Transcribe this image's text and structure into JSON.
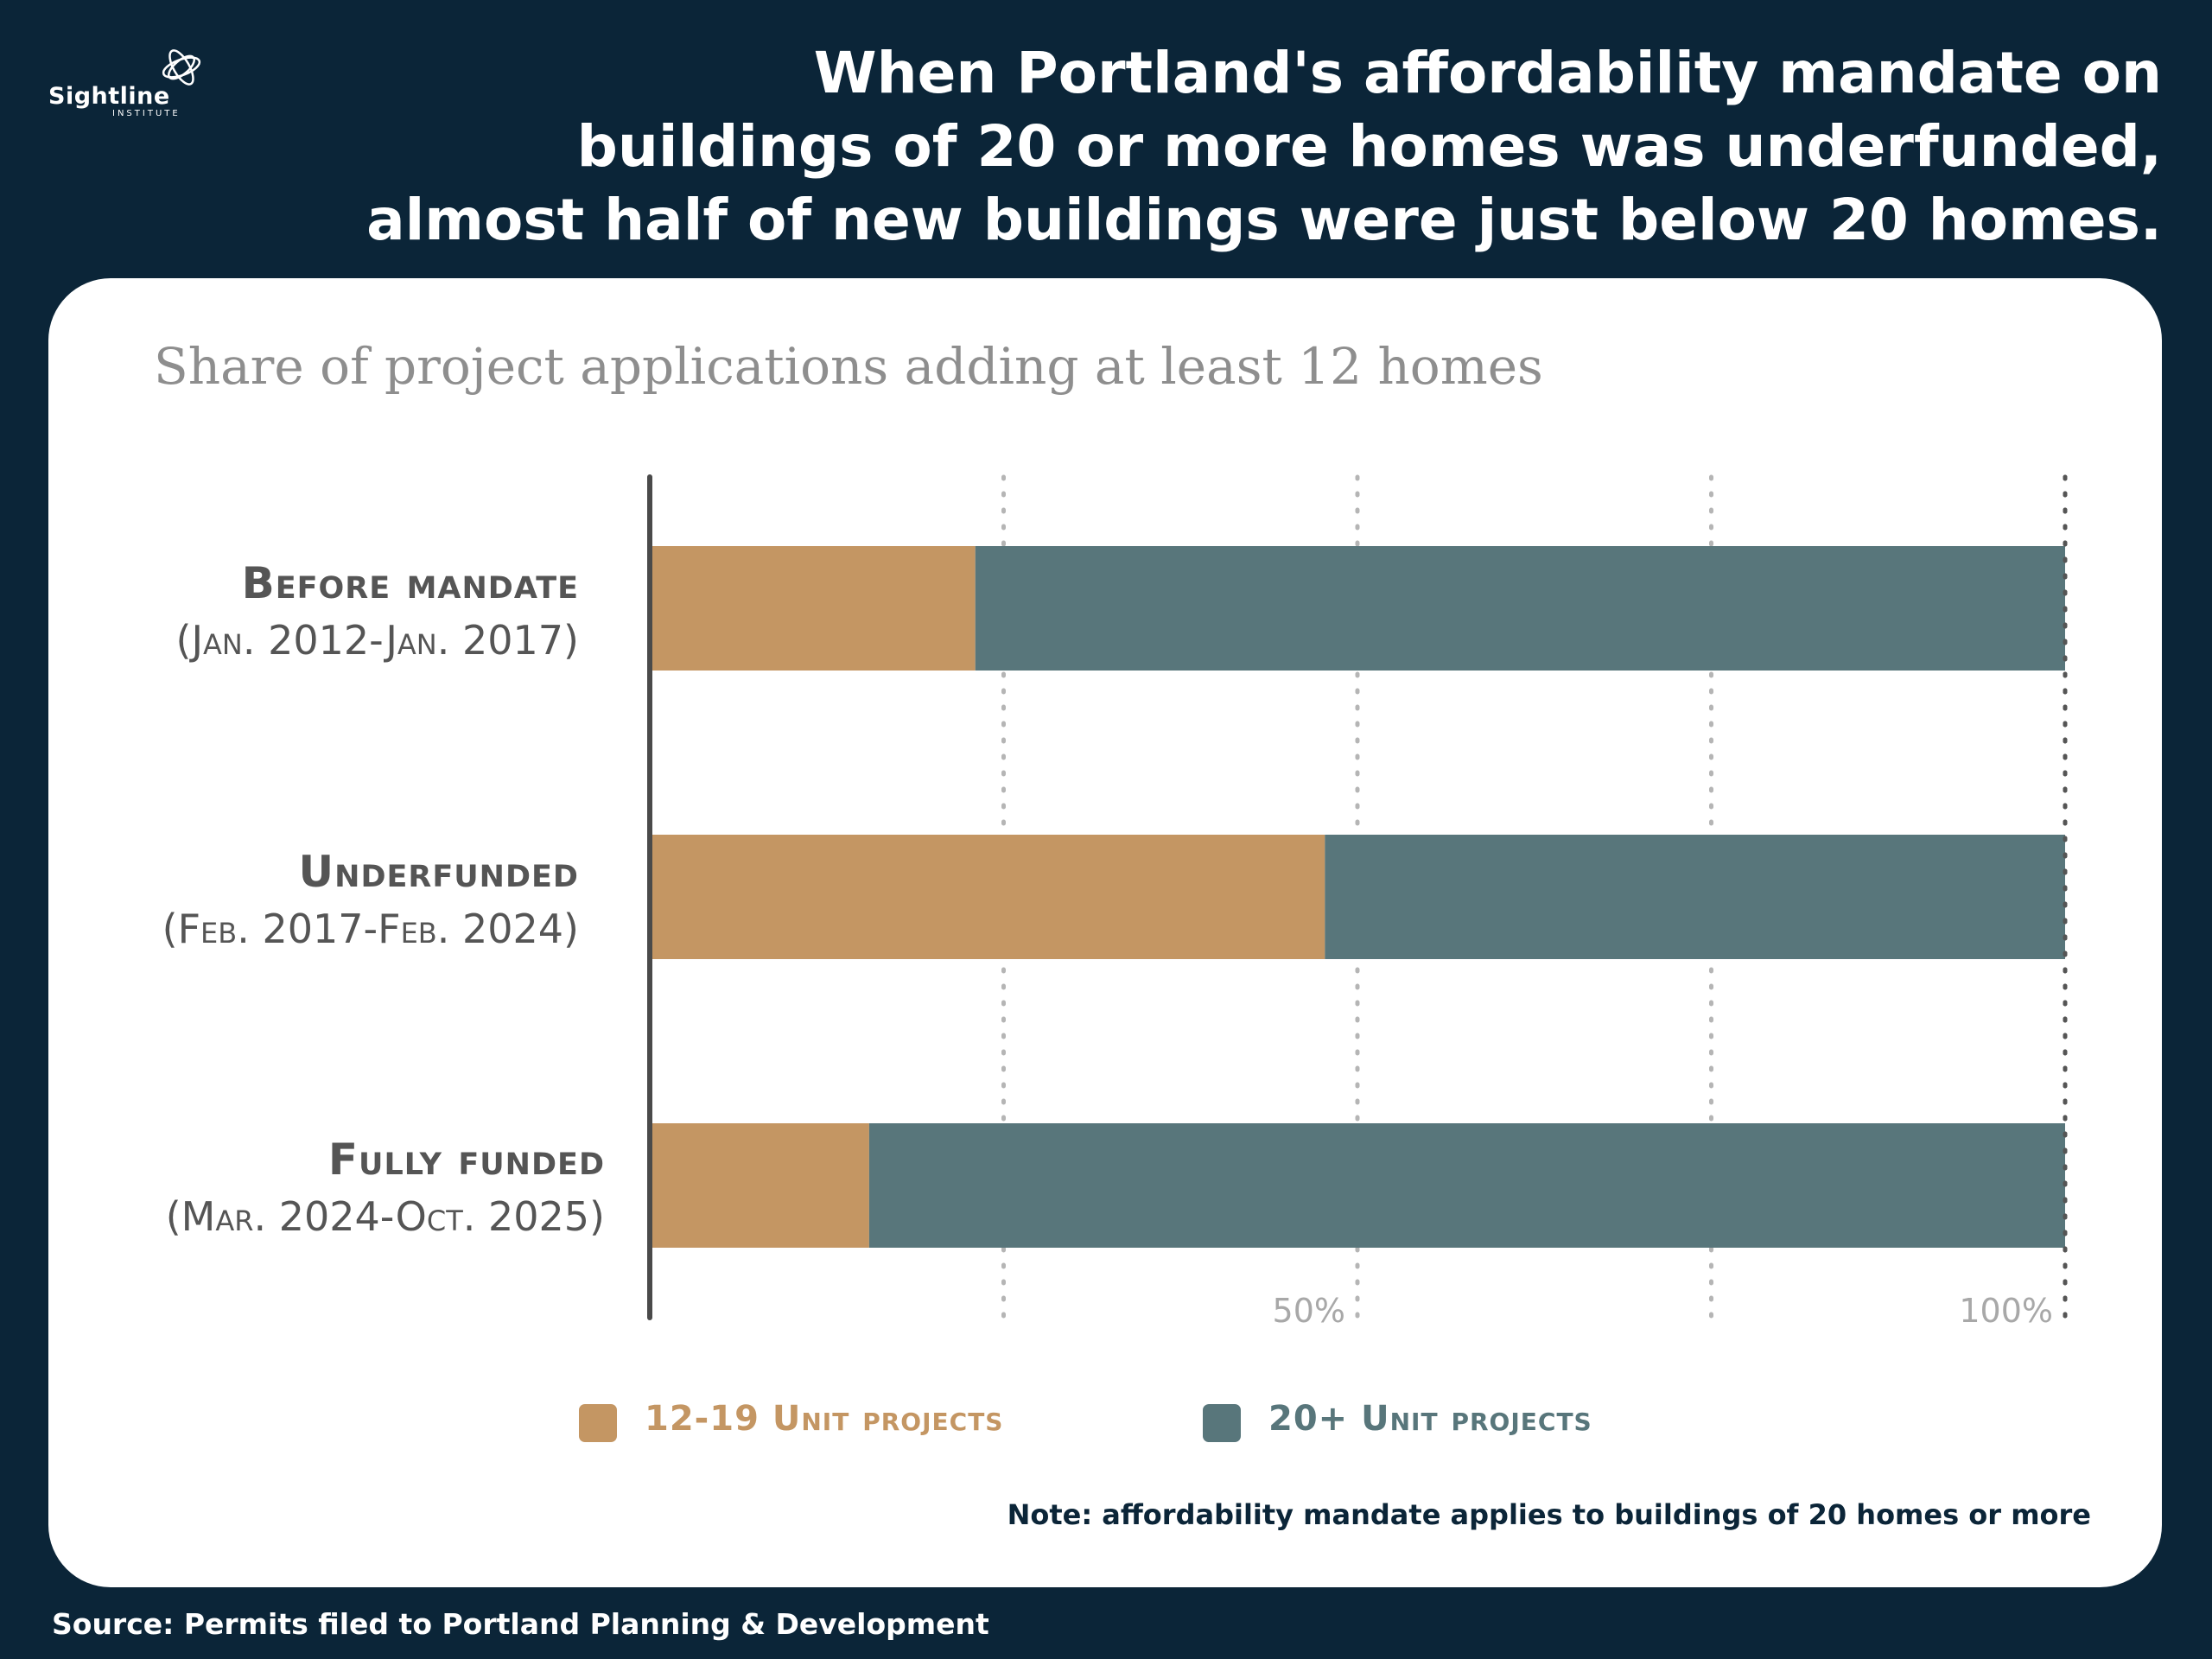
{
  "logo": {
    "name": "Sightline",
    "subtitle": "INSTITUTE"
  },
  "headline": [
    "When Portland's affordability mandate on",
    "buildings of 20 or more homes was underfunded,",
    "almost half of new buildings were just below 20 homes."
  ],
  "colors": {
    "background": "#0b2538",
    "series1": "#c49663",
    "series2": "#58767b",
    "axis": "#4a4a4a",
    "grid": "#b5b5b5"
  },
  "chart_data": {
    "type": "bar",
    "orientation": "horizontal",
    "stacked": true,
    "title": "Share of project applications adding at least 12 homes",
    "categories": [
      {
        "name": "Before mandate",
        "period": "(Jan. 2012-Jan. 2017)"
      },
      {
        "name": "Underfunded",
        "period": "(Feb. 2017-Feb. 2024)"
      },
      {
        "name": "Fully funded",
        "period": "(Mar. 2024-Oct. 2025)"
      }
    ],
    "series": [
      {
        "name": "12-19 Unit projects",
        "values": [
          23,
          47.7,
          15.5
        ]
      },
      {
        "name": "20+ Unit projects",
        "values": [
          77,
          52.3,
          84.5
        ]
      }
    ],
    "xlim": [
      0,
      100
    ],
    "gridlines": [
      25,
      50,
      75,
      100
    ],
    "tick_labels": [
      {
        "value": 50,
        "label": "50%"
      },
      {
        "value": 100,
        "label": "100%"
      }
    ],
    "legend": "bottom"
  },
  "note": "Note: affordability mandate applies to buildings of 20 homes or more",
  "source": "Source: Permits filed to Portland Planning & Development"
}
